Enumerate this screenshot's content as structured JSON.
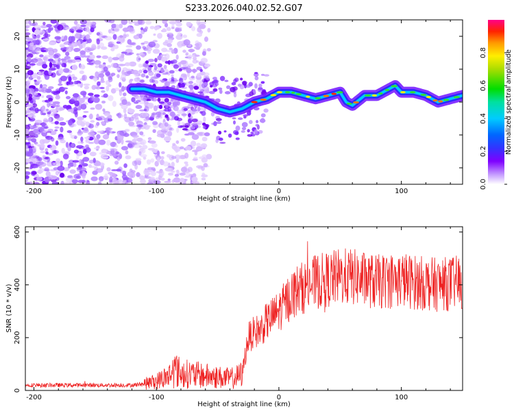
{
  "title": "S233.2026.040.02.52.G07",
  "chart_data": [
    {
      "type": "heatmap",
      "name": "spectrogram",
      "xlabel": "Height of straight line (km)",
      "ylabel": "Frequency (Hz)",
      "xlim": [
        -207,
        150
      ],
      "ylim": [
        -25,
        25
      ],
      "xticks": [
        -200,
        -100,
        0,
        100
      ],
      "yticks": [
        -20,
        -10,
        0,
        10,
        20
      ],
      "grid": false,
      "ridge": {
        "description": "dominant frequency ridge (Hz) vs height (km)",
        "x": [
          -120,
          -110,
          -100,
          -90,
          -80,
          -70,
          -60,
          -50,
          -40,
          -30,
          -20,
          -10,
          0,
          10,
          20,
          30,
          40,
          50,
          55,
          60,
          70,
          80,
          90,
          95,
          100,
          110,
          120,
          130,
          140,
          150
        ],
        "y": [
          4,
          4,
          3,
          3,
          2,
          1,
          0,
          -2,
          -3,
          -2,
          0,
          1,
          3,
          3,
          2,
          1,
          2,
          3,
          0,
          -1,
          2,
          2,
          4,
          5,
          3,
          3,
          2,
          0,
          1,
          2
        ]
      },
      "colorbar": {
        "label": "Normalized spectral amplitude",
        "range": [
          0.0,
          1.0
        ],
        "ticks": [
          "0.0",
          "0.2",
          "0.4",
          "0.6",
          "0.8"
        ]
      }
    },
    {
      "type": "line",
      "name": "snr",
      "xlabel": "Height of straight line (km)",
      "ylabel": "SNR (10 * v/v)",
      "xlim": [
        -207,
        150
      ],
      "ylim": [
        0,
        620
      ],
      "xticks": [
        -200,
        -100,
        0,
        100
      ],
      "yticks": [
        0,
        200,
        400,
        600
      ],
      "color": "#ee2222",
      "series": [
        {
          "name": "SNR",
          "x": [
            -207,
            -180,
            -150,
            -120,
            -110,
            -100,
            -95,
            -90,
            -85,
            -80,
            -70,
            -60,
            -50,
            -40,
            -35,
            -30,
            -28,
            -25,
            -20,
            -15,
            -10,
            -5,
            0,
            5,
            10,
            15,
            20,
            25,
            30,
            40,
            50,
            60,
            70,
            80,
            90,
            100,
            110,
            120,
            130,
            140,
            150
          ],
          "y": [
            20,
            20,
            20,
            20,
            25,
            35,
            45,
            55,
            80,
            65,
            60,
            55,
            50,
            45,
            50,
            60,
            120,
            200,
            220,
            230,
            260,
            280,
            300,
            330,
            360,
            380,
            390,
            400,
            410,
            420,
            430,
            430,
            420,
            410,
            415,
            420,
            410,
            405,
            400,
            405,
            410
          ]
        }
      ]
    }
  ]
}
